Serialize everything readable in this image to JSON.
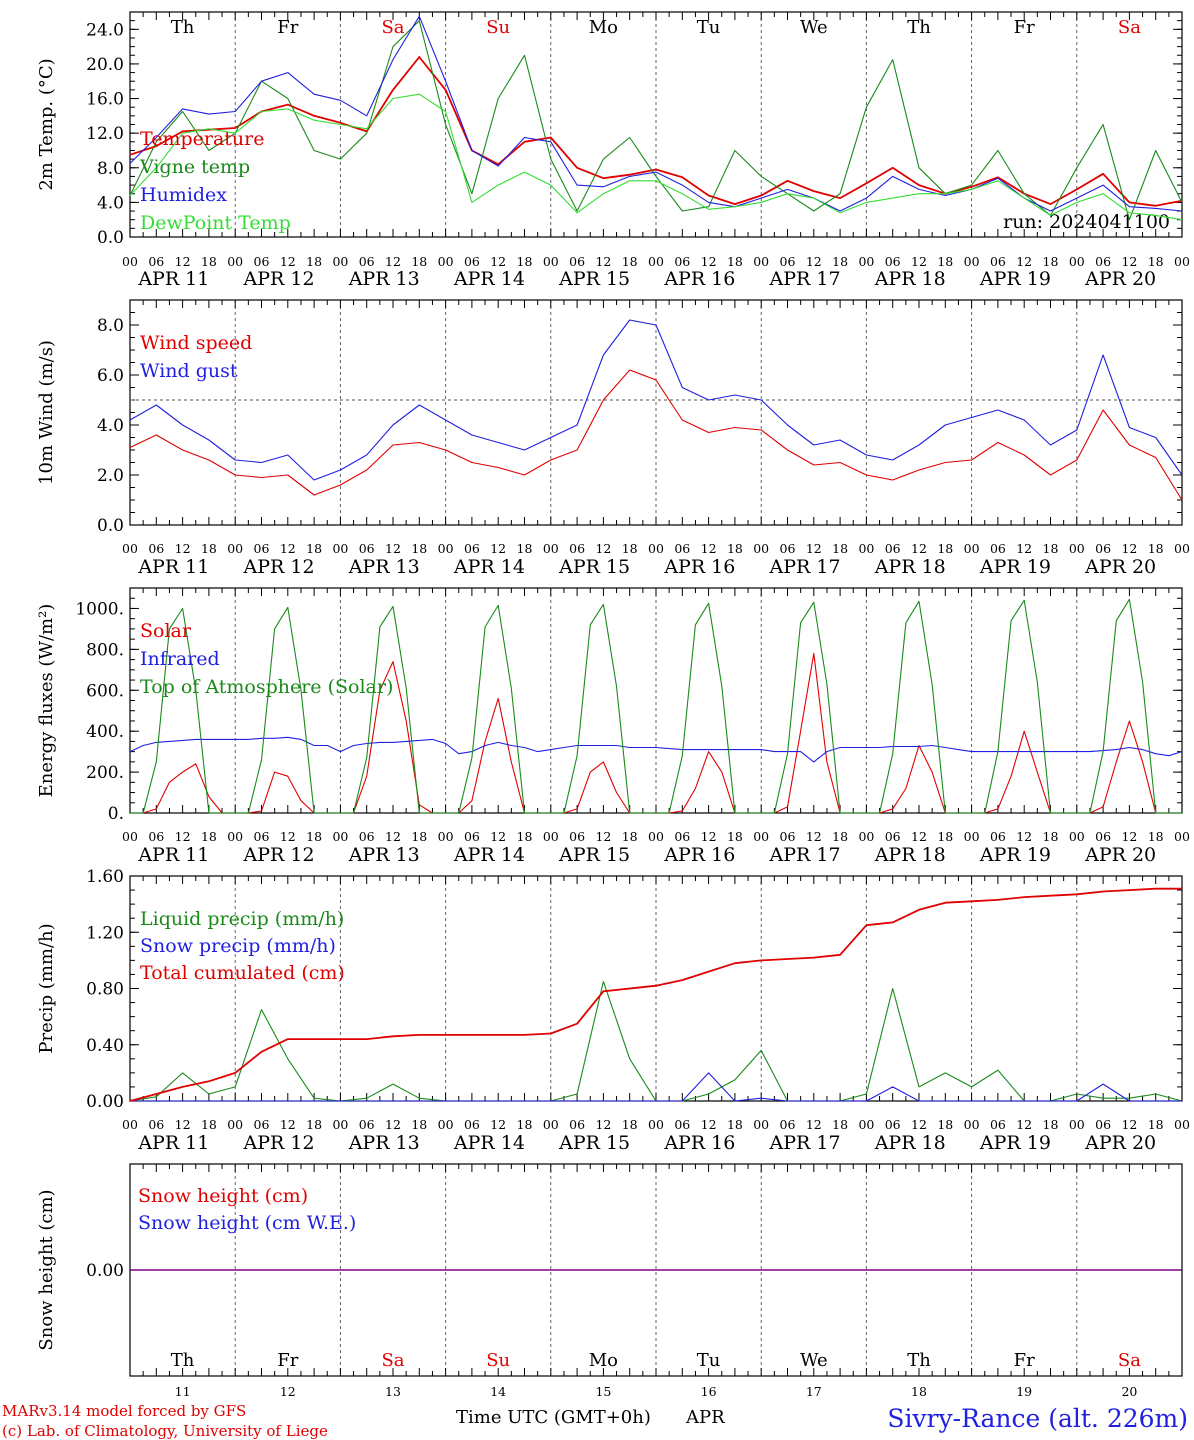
{
  "colors": {
    "red": "#e00000",
    "green": "#1a8a1a",
    "blue": "#2020e0",
    "lightgreen": "#33dd33",
    "purple": "#800080"
  },
  "days": {
    "weekdays": [
      "Th",
      "Fr",
      "Sa",
      "Su",
      "Mo",
      "Tu",
      "We",
      "Th",
      "Fr",
      "Sa"
    ],
    "weekend_flags": [
      false,
      false,
      true,
      true,
      false,
      false,
      false,
      false,
      false,
      true
    ],
    "dates": [
      "APR 11",
      "APR 12",
      "APR 13",
      "APR 14",
      "APR 15",
      "APR 16",
      "APR 17",
      "APR 18",
      "APR 19",
      "APR 20"
    ],
    "day_numbers": [
      "11",
      "12",
      "13",
      "14",
      "15",
      "16",
      "17",
      "18",
      "19",
      "20"
    ],
    "hour_labels": [
      "00",
      "06",
      "12",
      "18"
    ],
    "final_hour_label": "00"
  },
  "footer": {
    "model": "MARv3.14 model forced by GFS",
    "lab": "(c) Lab. of Climatology, University of Liege",
    "xlabel": "Time UTC (GMT+0h)",
    "month": "APR",
    "station": "Sivry-Rance (alt. 226m)"
  },
  "chart_data": [
    {
      "type": "line",
      "ylabel": "2m Temp. (°C)",
      "ylim": [
        0,
        26
      ],
      "yticks": [
        "0.0",
        "4.0",
        "8.0",
        "12.0",
        "16.0",
        "20.0",
        "24.0"
      ],
      "run_label": "run: 2024041100",
      "x_hours": [
        0,
        6,
        12,
        18,
        24,
        30,
        36,
        42,
        48,
        54,
        60,
        66,
        72,
        78,
        84,
        90,
        96,
        102,
        108,
        114,
        120,
        126,
        132,
        138,
        144,
        150,
        156,
        162,
        168,
        174,
        180,
        186,
        192,
        198,
        204,
        210,
        216,
        222,
        228,
        234,
        240
      ],
      "series": [
        {
          "name": "Temperature",
          "color": "red",
          "values": [
            9.5,
            10.5,
            12.2,
            12.4,
            12.6,
            14.5,
            15.3,
            14.0,
            13.2,
            12.2,
            17.0,
            20.8,
            17.0,
            10.0,
            8.4,
            11.0,
            11.5,
            8.0,
            6.8,
            7.2,
            7.8,
            6.9,
            4.8,
            3.8,
            4.8,
            6.5,
            5.3,
            4.5,
            6.2,
            8.0,
            6.0,
            5.0,
            5.8,
            6.9,
            5.0,
            3.8,
            5.5,
            7.3,
            4.0,
            3.6,
            4.2
          ]
        },
        {
          "name": "Vigne temp",
          "color": "green",
          "values": [
            4.8,
            11.0,
            14.5,
            10.0,
            12.0,
            18.0,
            16.0,
            10.0,
            9.0,
            12.0,
            22.0,
            25.0,
            13.0,
            5.0,
            16.0,
            21.0,
            9.0,
            3.0,
            9.0,
            11.5,
            7.0,
            3.0,
            3.5,
            10.0,
            7.0,
            5.0,
            3.0,
            5.0,
            15.0,
            20.5,
            8.0,
            5.0,
            6.0,
            10.0,
            5.0,
            2.5,
            8.0,
            13.0,
            2.0,
            10.0,
            4.0
          ]
        },
        {
          "name": "Humidex",
          "color": "blue",
          "values": [
            8.5,
            11.5,
            14.8,
            14.2,
            14.5,
            18.0,
            19.0,
            16.5,
            15.8,
            14.0,
            20.5,
            25.5,
            18.0,
            10.0,
            8.2,
            11.5,
            11.0,
            6.0,
            5.8,
            7.0,
            7.5,
            6.0,
            4.0,
            3.5,
            4.5,
            5.5,
            4.5,
            3.0,
            4.5,
            7.0,
            5.5,
            4.8,
            5.5,
            6.8,
            4.5,
            3.0,
            4.5,
            6.0,
            3.5,
            3.3,
            3.0
          ]
        },
        {
          "name": "DewPoint Temp",
          "color": "lightgreen",
          "values": [
            4.8,
            8.0,
            12.0,
            12.5,
            12.0,
            14.5,
            14.8,
            13.5,
            13.0,
            12.5,
            16.0,
            16.5,
            14.5,
            4.0,
            6.0,
            7.5,
            6.0,
            2.8,
            5.0,
            6.5,
            6.5,
            5.0,
            3.2,
            3.5,
            4.0,
            5.0,
            4.5,
            2.8,
            4.0,
            4.5,
            5.0,
            5.0,
            5.5,
            6.5,
            4.5,
            2.5,
            4.0,
            5.0,
            2.8,
            2.5,
            2.0
          ]
        }
      ]
    },
    {
      "type": "line",
      "ylabel": "10m Wind (m/s)",
      "ylim": [
        0,
        9
      ],
      "yticks": [
        "0.0",
        "2.0",
        "4.0",
        "6.0",
        "8.0"
      ],
      "reference_line": 5.0,
      "x_hours": [
        0,
        6,
        12,
        18,
        24,
        30,
        36,
        42,
        48,
        54,
        60,
        66,
        72,
        78,
        84,
        90,
        96,
        102,
        108,
        114,
        120,
        126,
        132,
        138,
        144,
        150,
        156,
        162,
        168,
        174,
        180,
        186,
        192,
        198,
        204,
        210,
        216,
        222,
        228,
        234,
        240
      ],
      "series": [
        {
          "name": "Wind speed",
          "color": "red",
          "values": [
            3.1,
            3.6,
            3.0,
            2.6,
            2.0,
            1.9,
            2.0,
            1.2,
            1.6,
            2.2,
            3.2,
            3.3,
            3.0,
            2.5,
            2.3,
            2.0,
            2.6,
            3.0,
            5.0,
            6.2,
            5.8,
            4.2,
            3.7,
            3.9,
            3.8,
            3.0,
            2.4,
            2.5,
            2.0,
            1.8,
            2.2,
            2.5,
            2.6,
            3.3,
            2.8,
            2.0,
            2.6,
            4.6,
            3.2,
            2.7,
            1.0
          ]
        },
        {
          "name": "Wind gust",
          "color": "blue",
          "values": [
            4.2,
            4.8,
            4.0,
            3.4,
            2.6,
            2.5,
            2.8,
            1.8,
            2.2,
            2.8,
            4.0,
            4.8,
            4.2,
            3.6,
            3.3,
            3.0,
            3.5,
            4.0,
            6.8,
            8.2,
            8.0,
            5.5,
            5.0,
            5.2,
            5.0,
            4.0,
            3.2,
            3.4,
            2.8,
            2.6,
            3.2,
            4.0,
            4.3,
            4.6,
            4.2,
            3.2,
            3.8,
            6.8,
            3.9,
            3.5,
            2.0
          ]
        }
      ]
    },
    {
      "type": "line",
      "ylabel": "Energy fluxes (W/m²)",
      "ylim": [
        0,
        1100
      ],
      "yticks": [
        "0.",
        "200.",
        "400.",
        "600.",
        "800.",
        "1000."
      ],
      "x_hours": [
        0,
        3,
        6,
        9,
        12,
        15,
        18,
        21,
        24,
        27,
        30,
        33,
        36,
        39,
        42,
        45,
        48,
        51,
        54,
        57,
        60,
        63,
        66,
        69,
        72,
        75,
        78,
        81,
        84,
        87,
        90,
        93,
        96,
        99,
        102,
        105,
        108,
        111,
        114,
        117,
        120,
        123,
        126,
        129,
        132,
        135,
        138,
        141,
        144,
        147,
        150,
        153,
        156,
        159,
        162,
        165,
        168,
        171,
        174,
        177,
        180,
        183,
        186,
        189,
        192,
        195,
        198,
        201,
        204,
        207,
        210,
        213,
        216,
        219,
        222,
        225,
        228,
        231,
        234,
        237,
        240
      ],
      "series": [
        {
          "name": "Solar",
          "color": "red",
          "values": [
            0,
            0,
            20,
            150,
            200,
            240,
            80,
            0,
            0,
            0,
            10,
            200,
            180,
            60,
            0,
            0,
            0,
            0,
            180,
            600,
            740,
            450,
            40,
            0,
            0,
            0,
            60,
            350,
            560,
            250,
            0,
            0,
            0,
            0,
            20,
            200,
            250,
            100,
            0,
            0,
            0,
            0,
            10,
            120,
            300,
            200,
            0,
            0,
            0,
            0,
            30,
            400,
            780,
            250,
            0,
            0,
            0,
            0,
            20,
            120,
            330,
            200,
            0,
            0,
            0,
            0,
            20,
            180,
            400,
            200,
            0,
            0,
            0,
            0,
            30,
            250,
            450,
            250,
            0,
            0,
            0
          ]
        },
        {
          "name": "Infrared",
          "color": "blue",
          "values": [
            300,
            330,
            345,
            350,
            355,
            360,
            360,
            360,
            360,
            360,
            365,
            365,
            370,
            360,
            330,
            330,
            300,
            330,
            340,
            345,
            345,
            350,
            355,
            360,
            340,
            290,
            300,
            330,
            345,
            330,
            320,
            300,
            310,
            320,
            330,
            330,
            330,
            330,
            320,
            320,
            320,
            315,
            310,
            310,
            310,
            310,
            310,
            310,
            310,
            300,
            300,
            300,
            250,
            300,
            320,
            320,
            320,
            320,
            325,
            325,
            325,
            330,
            320,
            310,
            300,
            300,
            300,
            300,
            300,
            300,
            300,
            300,
            300,
            300,
            305,
            310,
            320,
            310,
            290,
            280,
            300
          ]
        },
        {
          "name": "Top of Atmosphere (Solar)",
          "color": "green",
          "values": [
            0,
            0,
            250,
            900,
            1000,
            600,
            0,
            0,
            0,
            0,
            260,
            900,
            1005,
            600,
            0,
            0,
            0,
            0,
            270,
            910,
            1010,
            610,
            0,
            0,
            0,
            0,
            270,
            910,
            1015,
            610,
            0,
            0,
            0,
            0,
            280,
            920,
            1020,
            620,
            0,
            0,
            0,
            0,
            280,
            920,
            1025,
            620,
            0,
            0,
            0,
            0,
            290,
            930,
            1030,
            630,
            0,
            0,
            0,
            0,
            290,
            930,
            1035,
            630,
            0,
            0,
            0,
            0,
            300,
            940,
            1040,
            640,
            0,
            0,
            0,
            0,
            300,
            940,
            1045,
            640,
            0,
            0,
            0
          ]
        }
      ]
    },
    {
      "type": "line",
      "ylabel": "Precip (mm/h)",
      "ylim": [
        0,
        1.6
      ],
      "yticks": [
        "0.00",
        "0.40",
        "0.80",
        "1.20",
        "1.60"
      ],
      "x_hours": [
        0,
        6,
        12,
        18,
        24,
        30,
        36,
        42,
        48,
        54,
        60,
        66,
        72,
        78,
        84,
        90,
        96,
        102,
        108,
        114,
        120,
        126,
        132,
        138,
        144,
        150,
        156,
        162,
        168,
        174,
        180,
        186,
        192,
        198,
        204,
        210,
        216,
        222,
        228,
        234,
        240
      ],
      "series": [
        {
          "name": "Liquid precip (mm/h)",
          "color": "green",
          "values": [
            0,
            0.03,
            0.2,
            0.05,
            0.1,
            0.65,
            0.3,
            0.02,
            0,
            0.02,
            0.12,
            0.02,
            0,
            0,
            0,
            0,
            0,
            0.05,
            0.85,
            0.3,
            0,
            0,
            0.05,
            0.15,
            0.36,
            0,
            0,
            0,
            0.05,
            0.8,
            0.1,
            0.2,
            0.1,
            0.22,
            0,
            0,
            0.05,
            0.02,
            0.02,
            0.05,
            0
          ]
        },
        {
          "name": "Snow precip (mm/h)",
          "color": "blue",
          "values": [
            0,
            0,
            0,
            0,
            0,
            0,
            0,
            0,
            0,
            0,
            0,
            0,
            0,
            0,
            0,
            0,
            0,
            0,
            0,
            0,
            0,
            0,
            0.2,
            0,
            0.02,
            0,
            0,
            0,
            0,
            0.1,
            0,
            0,
            0,
            0,
            0,
            0,
            0,
            0.12,
            0,
            0,
            0
          ]
        },
        {
          "name": "Total cumulated (cm)",
          "color": "red",
          "values": [
            0,
            0.05,
            0.1,
            0.14,
            0.2,
            0.35,
            0.44,
            0.44,
            0.44,
            0.44,
            0.46,
            0.47,
            0.47,
            0.47,
            0.47,
            0.47,
            0.48,
            0.55,
            0.78,
            0.8,
            0.82,
            0.86,
            0.92,
            0.98,
            1.0,
            1.01,
            1.02,
            1.04,
            1.25,
            1.27,
            1.36,
            1.41,
            1.42,
            1.43,
            1.45,
            1.46,
            1.47,
            1.49,
            1.5,
            1.51,
            1.51
          ]
        }
      ]
    },
    {
      "type": "line",
      "ylabel": "Snow height (cm)",
      "yticks": [
        "0.00"
      ],
      "x_hours": [
        0,
        240
      ],
      "series": [
        {
          "name": "Snow height (cm)",
          "color": "red",
          "values": [
            0,
            0
          ]
        },
        {
          "name": "Snow height (cm W.E.)",
          "color": "blue",
          "values": [
            0,
            0
          ]
        }
      ]
    }
  ]
}
